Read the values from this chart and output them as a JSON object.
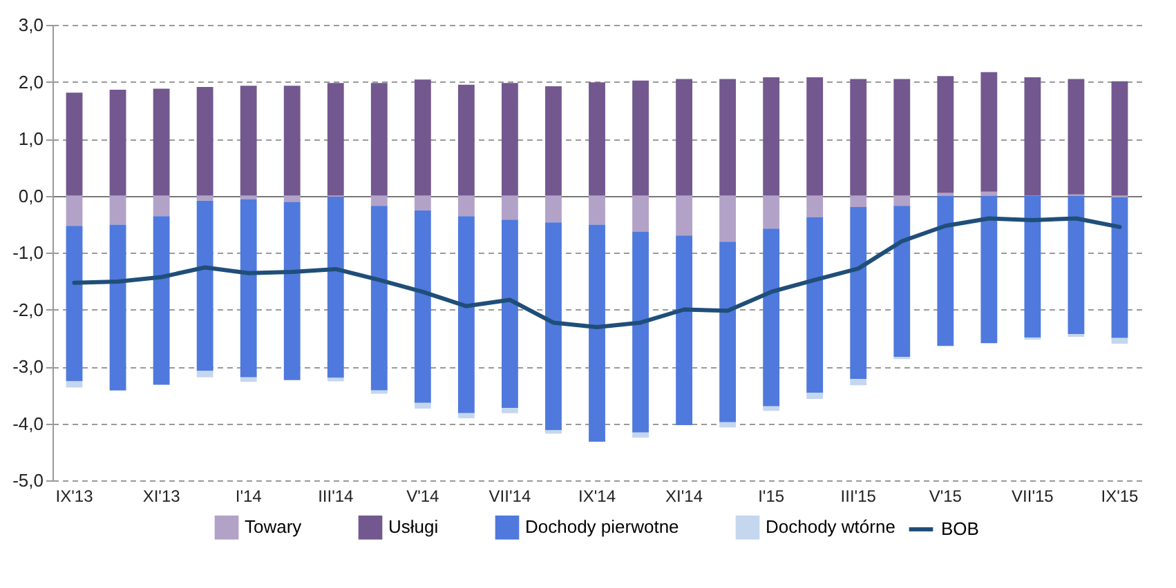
{
  "chart_data": {
    "type": "bar",
    "stacked": true,
    "categories": [
      "IX'13",
      null,
      "XI'13",
      null,
      "I'14",
      null,
      "III'14",
      null,
      "V'14",
      null,
      "VII'14",
      null,
      "IX'14",
      null,
      "XI'14",
      null,
      "I'15",
      null,
      "III'15",
      null,
      "V'15",
      null,
      "VII'15",
      null,
      "IX'15"
    ],
    "series": [
      {
        "name": "Towary",
        "color": "#b3a2c7",
        "values": [
          -0.53,
          -0.51,
          -0.36,
          -0.09,
          -0.06,
          -0.11,
          -0.02,
          -0.18,
          -0.26,
          -0.36,
          -0.42,
          -0.47,
          -0.51,
          -0.63,
          -0.7,
          -0.81,
          -0.58,
          -0.38,
          -0.2,
          -0.18,
          0.05,
          0.07,
          null,
          0.02,
          -0.03
        ]
      },
      {
        "name": "Usługi",
        "color": "#72588f",
        "values": [
          1.81,
          1.86,
          1.88,
          1.91,
          1.93,
          1.93,
          1.98,
          1.98,
          2.04,
          1.95,
          1.98,
          1.92,
          1.99,
          2.02,
          2.05,
          2.05,
          2.08,
          2.08,
          2.05,
          2.05,
          2.05,
          2.1,
          2.08,
          2.03,
          2.01
        ]
      },
      {
        "name": "Dochody pierwotne",
        "color": "#4f79dc",
        "values": [
          -2.73,
          -2.91,
          -2.96,
          -2.99,
          -3.13,
          -3.13,
          -3.18,
          -3.24,
          -3.38,
          -3.46,
          -3.31,
          -3.65,
          -3.81,
          -3.53,
          -3.33,
          -3.17,
          -3.12,
          -3.08,
          -3.02,
          -2.65,
          -2.64,
          -2.59,
          -2.49,
          -2.43,
          -2.47
        ]
      },
      {
        "name": "Dochody wtórne",
        "color": "#c5d7ef",
        "values": [
          -0.11,
          null,
          null,
          -0.11,
          -0.08,
          null,
          -0.06,
          -0.06,
          -0.1,
          -0.09,
          -0.09,
          -0.06,
          null,
          -0.09,
          null,
          -0.09,
          -0.08,
          -0.11,
          -0.11,
          -0.04,
          null,
          null,
          -0.04,
          -0.05,
          -0.1
        ]
      },
      {
        "name": "BOB",
        "type": "line",
        "color": "#1f4e79",
        "values": [
          -1.53,
          -1.51,
          -1.43,
          -1.26,
          -1.36,
          -1.34,
          -1.29,
          -1.48,
          -1.69,
          -1.94,
          -1.83,
          -2.23,
          -2.31,
          -2.23,
          -2.0,
          -2.02,
          -1.69,
          -1.48,
          -1.28,
          -0.8,
          -0.53,
          -0.4,
          -0.43,
          -0.4,
          -0.55
        ]
      }
    ],
    "ylim": [
      -5,
      3
    ],
    "yticks": [
      {
        "value": -5,
        "label": "-5,0"
      },
      {
        "value": -4,
        "label": "-4,0"
      },
      {
        "value": -3,
        "label": "-3,0"
      },
      {
        "value": -2,
        "label": "-2,0"
      },
      {
        "value": -1,
        "label": "-1,0"
      },
      {
        "value": 0,
        "label": "0,0"
      },
      {
        "value": 1,
        "label": "1,0"
      },
      {
        "value": 2,
        "label": "2,0"
      },
      {
        "value": 3,
        "label": "3,0"
      }
    ],
    "grid": "y",
    "legend": "bottom",
    "marker": "none",
    "line_style": "solid"
  }
}
